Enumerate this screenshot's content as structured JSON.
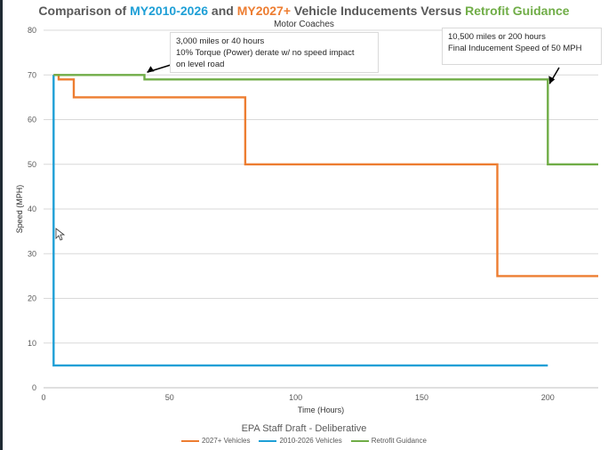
{
  "chart_data": {
    "type": "line",
    "title_parts": [
      {
        "text": "Comparison of ",
        "color": "#595959"
      },
      {
        "text": "MY2010-2026",
        "color": "#1E9FD6"
      },
      {
        "text": " and ",
        "color": "#595959"
      },
      {
        "text": "MY2027+",
        "color": "#ED7D31"
      },
      {
        "text": " Vehicle Inducements Versus ",
        "color": "#595959"
      },
      {
        "text": "Retrofit Guidance",
        "color": "#70AD47"
      }
    ],
    "subtitle": "Motor Coaches",
    "xlabel": "Time (Hours)",
    "ylabel": "Speed (MPH)",
    "xlim": [
      0,
      220
    ],
    "ylim": [
      0,
      80
    ],
    "xticks": [
      0,
      50,
      100,
      150,
      200
    ],
    "yticks": [
      0,
      10,
      20,
      30,
      40,
      50,
      60,
      70,
      80
    ],
    "grid": "horizontal",
    "legend_position": "bottom",
    "series": [
      {
        "name": "2027+ Vehicles",
        "color": "#ED7D31",
        "points": [
          [
            4,
            70
          ],
          [
            6,
            70
          ],
          [
            6,
            69
          ],
          [
            12,
            69
          ],
          [
            12,
            65
          ],
          [
            80,
            65
          ],
          [
            80,
            50
          ],
          [
            180,
            50
          ],
          [
            180,
            25
          ],
          [
            220,
            25
          ]
        ]
      },
      {
        "name": "2010-2026 Vehicles",
        "color": "#1E9FD6",
        "points": [
          [
            4,
            70
          ],
          [
            4,
            5
          ],
          [
            200,
            5
          ]
        ]
      },
      {
        "name": "Retrofit Guidance",
        "color": "#70AD47",
        "points": [
          [
            4,
            70
          ],
          [
            40,
            70
          ],
          [
            40,
            69
          ],
          [
            200,
            69
          ],
          [
            200,
            50
          ],
          [
            220,
            50
          ]
        ]
      }
    ],
    "annotations": [
      {
        "lines": [
          "3,000 miles or 40 hours",
          "10% Torque (Power) derate w/ no speed impact",
          "on level road"
        ],
        "target_x": 40,
        "target_y": 70
      },
      {
        "lines": [
          "10,500 miles or 200 hours",
          "Final Inducement Speed of 50 MPH"
        ],
        "target_x": 200,
        "target_y": 69
      }
    ]
  },
  "footer": "EPA Staff Draft - Deliberative"
}
